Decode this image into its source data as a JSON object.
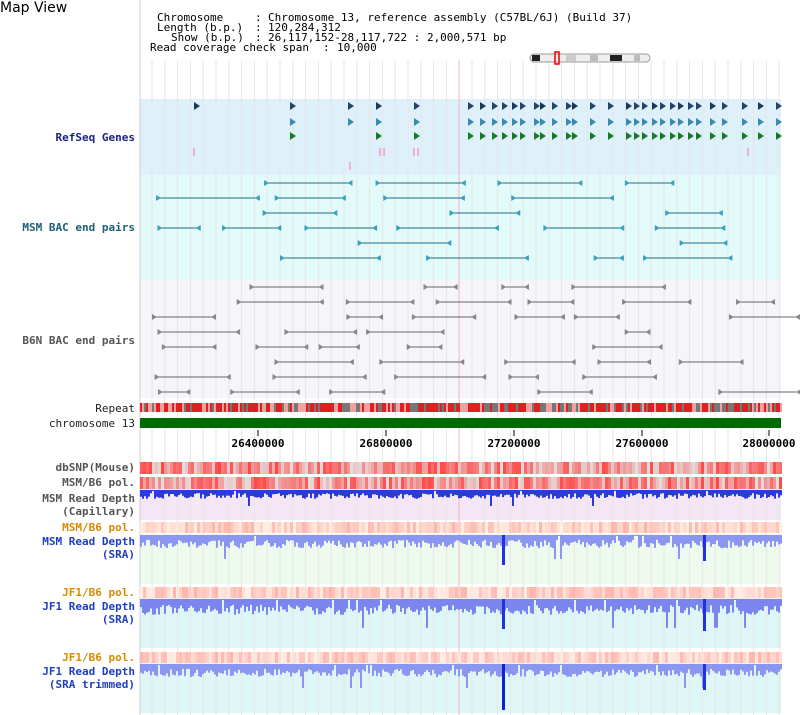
{
  "view_title": "Map View",
  "info": {
    "chromosome_label": "Chromosome",
    "chromosome_value": "Chromosome 13, reference assembly (C57BL/6J) (Build 37)",
    "length_label": "Length (b.p.)",
    "length_value": "120,284,312",
    "show_label": "Show (b.p.)",
    "show_value": "26,117,152-28,117,722 : 2,000,571 bp",
    "coverage_label": "Read coverage check span",
    "coverage_value": "10,000"
  },
  "tracks": {
    "refseq": "RefSeq Genes",
    "msm_bac": "MSM BAC end pairs",
    "b6n_bac": "B6N BAC end pairs",
    "repeat": "Repeat",
    "chromosome": "chromosome 13",
    "dbsnp": "dbSNP(Mouse)",
    "msm_b6_pol_1": "MSM/B6 pol.",
    "msm_read_depth_cap": "MSM Read Depth\n(Capillary)",
    "msm_b6_pol_2": "MSM/B6 pol.",
    "msm_read_depth_sra": "MSM Read Depth\n(SRA)",
    "jf1_b6_pol_1": "JF1/B6 pol.",
    "jf1_read_depth_sra": "JF1 Read Depth\n(SRA)",
    "jf1_b6_pol_2": "JF1/B6 pol.",
    "jf1_read_depth_trim": "JF1 Read Depth\n(SRA trimmed)"
  },
  "axis": {
    "ticks": [
      "26400000",
      "26800000",
      "27200000",
      "27600000",
      "28000000"
    ]
  },
  "colors": {
    "refseq_bg": "#def0fa",
    "msm_bg": "#e3fafa",
    "b6n_bg": "#f6f6fa",
    "chromosome_bar": "#006b00",
    "depth_blue": "#2233dd",
    "highlight_line": "#f2b8c6"
  }
}
